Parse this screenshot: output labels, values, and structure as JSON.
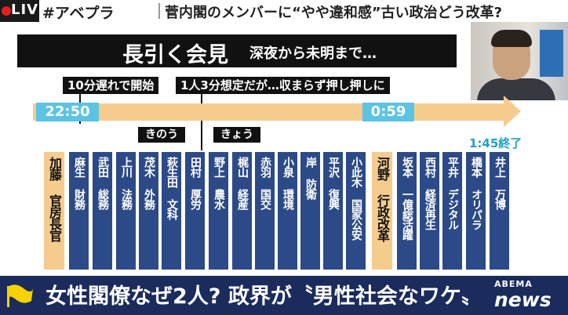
{
  "broadcast": {
    "live_label": "LIVE",
    "hashtag": "#アベプラ",
    "headline": "菅内閣のメンバーに“やや違和感”古い政治どう改革?",
    "bottom_caption": "女性閣僚なぜ2人? 政界が〝男性社会なワケ〟",
    "logo_top": "ABEMA",
    "logo_bottom": "news"
  },
  "colors": {
    "navy": "#2b4a87",
    "highlight": "#f6cc8e",
    "time_blue": "#5bc3e3",
    "bottom_band": "#1a2b5c"
  },
  "panel": {
    "title": "長引く会見",
    "subtitle": "深夜から未明まで…",
    "callout_late": "10分遅れで開始",
    "callout_overrun": "1人3分想定だが…収まらず押し押しに",
    "start_time": "22:50",
    "mid_time": "0:59",
    "end_time": "1:45終了",
    "day_yesterday": "きのう",
    "day_today": "きょう"
  },
  "ministers": [
    {
      "label": "加藤 官房長官"
    },
    {
      "label": "麻生 財務"
    },
    {
      "label": "武田 総務"
    },
    {
      "label": "上川 法務"
    },
    {
      "label": "茂木 外務"
    },
    {
      "label": "萩生田 文科"
    },
    {
      "label": "田村 厚労"
    },
    {
      "label": "野上 農水"
    },
    {
      "label": "梶山 経産"
    },
    {
      "label": "赤羽 国交"
    },
    {
      "label": "小泉 環境"
    },
    {
      "label": "岸 防衛"
    },
    {
      "label": "平沢 復興"
    },
    {
      "label": "小此木 国家公安"
    },
    {
      "label": "河野 行政改革"
    },
    {
      "label": "坂本 一億総活躍"
    },
    {
      "label": "西村 経済再生"
    },
    {
      "label": "平井 デジタル"
    },
    {
      "label": "橋本 オリパラ"
    },
    {
      "label": "井上 万博"
    }
  ]
}
